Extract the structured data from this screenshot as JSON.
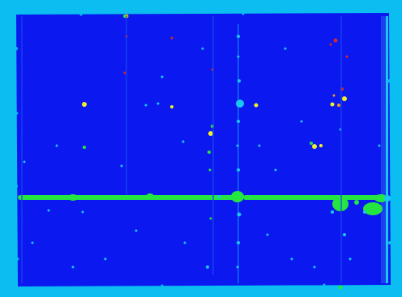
{
  "image": {
    "kind": "false-color heatmap",
    "colors": {
      "border": "#0bbdf0",
      "field": "#0b19f0",
      "field_dark": "#0a12e0",
      "cyan": "#19c8f0",
      "green": "#25e640",
      "yellow": "#f0f02a",
      "red": "#d8282a",
      "orange": "#f09a20"
    }
  }
}
